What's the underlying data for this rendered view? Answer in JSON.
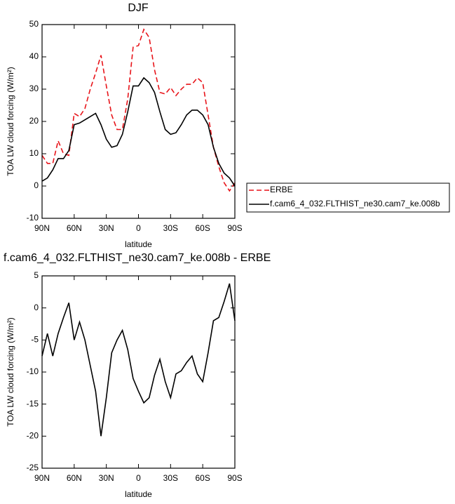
{
  "chart_data": [
    {
      "type": "line",
      "title": "DJF",
      "xlabel": "latitude",
      "ylabel": "TOA LW cloud forcing (W/m²)",
      "x": [
        90,
        85,
        80,
        75,
        70,
        65,
        60,
        55,
        50,
        45,
        40,
        35,
        30,
        25,
        20,
        15,
        10,
        5,
        0,
        -5,
        -10,
        -15,
        -20,
        -25,
        -30,
        -35,
        -40,
        -45,
        -50,
        -55,
        -60,
        -65,
        -70,
        -75,
        -80,
        -85,
        -90
      ],
      "series": [
        {
          "name": "ERBE",
          "color": "#e8141a",
          "dash": true,
          "values": [
            9.5,
            7,
            7,
            14,
            10,
            9.5,
            22.5,
            21.5,
            24,
            30,
            35,
            40.5,
            31,
            22,
            17.5,
            17.5,
            27,
            43,
            43.5,
            48.5,
            46,
            36,
            29,
            28.5,
            30.5,
            28,
            30,
            31.5,
            31.5,
            33.5,
            32,
            22,
            12,
            6,
            1,
            -1.5,
            1
          ]
        },
        {
          "name": "f.cam6_4_032.FLTHIST_ne30.cam7_ke.008b",
          "color": "#000000",
          "dash": false,
          "values": [
            1.5,
            2.5,
            5,
            8.5,
            8.5,
            11,
            19,
            19.5,
            20.5,
            21.5,
            22.5,
            19,
            14.5,
            12,
            12.5,
            16,
            23,
            31,
            31,
            33.5,
            32,
            29,
            23,
            17.5,
            16,
            16.5,
            19,
            22,
            23.5,
            23.5,
            22,
            19,
            12,
            7,
            4,
            2.5,
            0
          ]
        }
      ],
      "xlim": [
        90,
        -90
      ],
      "ylim": [
        -10,
        50
      ],
      "xticks": [
        {
          "value": 90,
          "label": "90N"
        },
        {
          "value": 60,
          "label": "60N"
        },
        {
          "value": 30,
          "label": "30N"
        },
        0,
        {
          "value": -30,
          "label": "30S"
        },
        {
          "value": -60,
          "label": "60S"
        },
        {
          "value": -90,
          "label": "90S"
        }
      ],
      "yticks": [
        -10,
        0,
        10,
        20,
        30,
        40,
        50
      ],
      "legend": "right"
    },
    {
      "type": "line",
      "title": "f.cam6_4_032.FLTHIST_ne30.cam7_ke.008b - ERBE",
      "xlabel": "latitude",
      "ylabel": "TOA LW cloud forcing (W/m²)",
      "x": [
        90,
        85,
        80,
        75,
        70,
        65,
        60,
        55,
        50,
        45,
        40,
        35,
        30,
        25,
        20,
        15,
        10,
        5,
        0,
        -5,
        -10,
        -15,
        -20,
        -25,
        -30,
        -35,
        -40,
        -45,
        -50,
        -55,
        -60,
        -65,
        -70,
        -75,
        -80,
        -85,
        -90
      ],
      "color": "#000000",
      "values": [
        -7.5,
        -4,
        -7.5,
        -4,
        -1.5,
        0.8,
        -5,
        -2.2,
        -5,
        -9,
        -13,
        -20,
        -14,
        -7,
        -5,
        -3.5,
        -6.5,
        -11,
        -13,
        -14.8,
        -14,
        -10.5,
        -8,
        -11.5,
        -14,
        -10.3,
        -9.8,
        -8.5,
        -7.5,
        -10.3,
        -11.5,
        -7,
        -2,
        -1.5,
        1,
        3.8,
        -2
      ],
      "xlim": [
        90,
        -90
      ],
      "ylim": [
        -25,
        5
      ],
      "xticks": [
        {
          "value": 90,
          "label": "90N"
        },
        {
          "value": 60,
          "label": "60N"
        },
        {
          "value": 30,
          "label": "30N"
        },
        0,
        {
          "value": -30,
          "label": "30S"
        },
        {
          "value": -60,
          "label": "60S"
        },
        {
          "value": -90,
          "label": "90S"
        }
      ],
      "yticks": [
        -25,
        -20,
        -15,
        -10,
        -5,
        0,
        5
      ]
    }
  ]
}
